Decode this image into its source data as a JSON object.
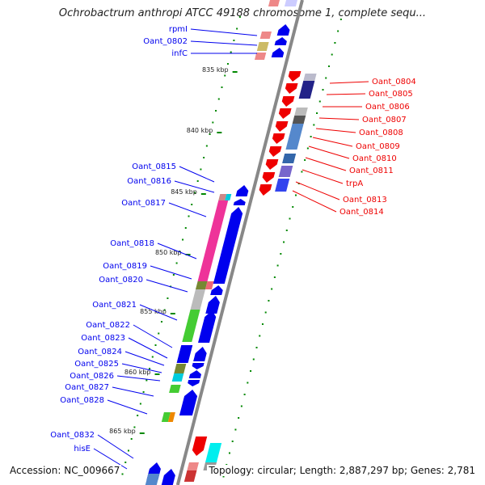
{
  "title": "Ochrobactrum anthropi ATCC 49188 chromosome 1, complete sequ...",
  "accession": "Accession: NC_009667",
  "topology": "Topology: circular; Length: 2,887,297 bp; Genes: 2,781",
  "ticks": [
    {
      "label": "835 kbp"
    },
    {
      "label": "840 kbp"
    },
    {
      "label": "845 kbp"
    },
    {
      "label": "850 kbp"
    },
    {
      "label": "855 kbp"
    },
    {
      "label": "860 kbp"
    },
    {
      "label": "865 kbp"
    }
  ],
  "left_labels": [
    {
      "text": "rpmI"
    },
    {
      "text": "Oant_0802"
    },
    {
      "text": "infC"
    },
    {
      "text": "Oant_0815"
    },
    {
      "text": "Oant_0816"
    },
    {
      "text": "Oant_0817"
    },
    {
      "text": "Oant_0818"
    },
    {
      "text": "Oant_0819"
    },
    {
      "text": "Oant_0820"
    },
    {
      "text": "Oant_0821"
    },
    {
      "text": "Oant_0822"
    },
    {
      "text": "Oant_0823"
    },
    {
      "text": "Oant_0824"
    },
    {
      "text": "Oant_0825"
    },
    {
      "text": "Oant_0826"
    },
    {
      "text": "Oant_0827"
    },
    {
      "text": "Oant_0828"
    },
    {
      "text": "Oant_0832"
    },
    {
      "text": "hisE"
    }
  ],
  "right_labels": [
    {
      "text": "Oant_0804"
    },
    {
      "text": "Oant_0805"
    },
    {
      "text": "Oant_0806"
    },
    {
      "text": "Oant_0807"
    },
    {
      "text": "Oant_0808"
    },
    {
      "text": "Oant_0809"
    },
    {
      "text": "Oant_0810"
    },
    {
      "text": "Oant_0811"
    },
    {
      "text": "trpA"
    },
    {
      "text": "Oant_0813"
    },
    {
      "text": "Oant_0814"
    }
  ],
  "colors": {
    "forward": "#0000ee",
    "reverse": "#ee0000",
    "backbone": "#888888",
    "ticks": "#008800"
  }
}
